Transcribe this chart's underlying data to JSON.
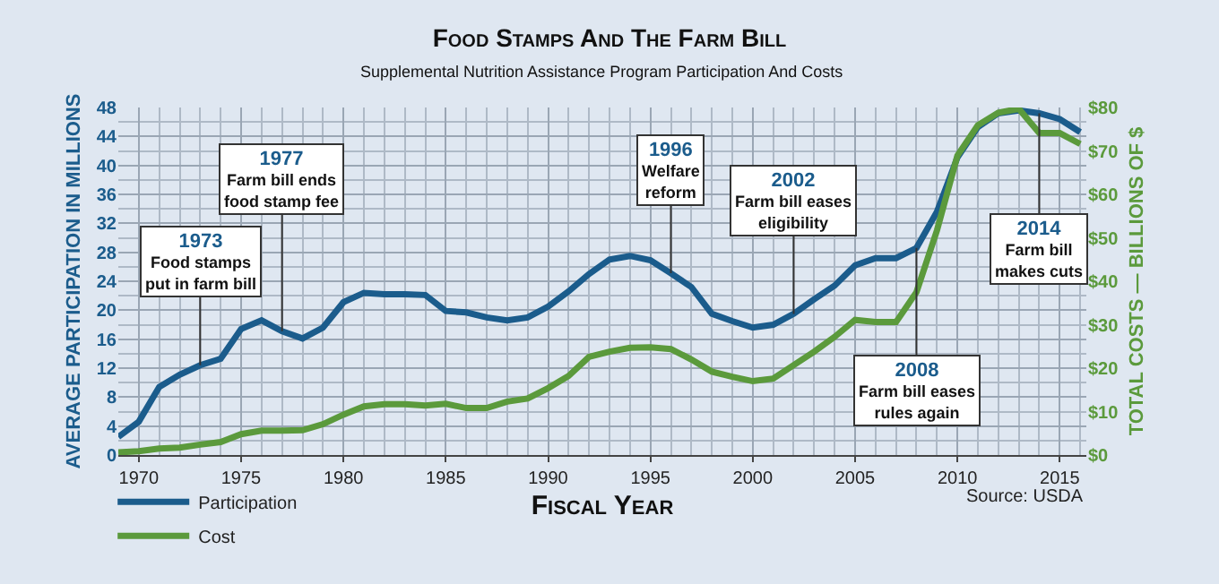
{
  "chart_data": {
    "type": "line",
    "title": "Food Stamps And The Farm Bill",
    "subtitle": "Supplemental Nutrition Assistance Program Participation And Costs",
    "xlabel": "Fiscal Year",
    "ylabel": "AVERAGE PARTICIPATION IN MILLIONS",
    "y2label": "TOTAL COSTS — BILLIONS OF $",
    "x": [
      1969,
      1970,
      1971,
      1972,
      1973,
      1974,
      1975,
      1976,
      1977,
      1978,
      1979,
      1980,
      1981,
      1982,
      1983,
      1984,
      1985,
      1986,
      1987,
      1988,
      1989,
      1990,
      1991,
      1992,
      1993,
      1994,
      1995,
      1996,
      1997,
      1998,
      1999,
      2000,
      2001,
      2002,
      2003,
      2004,
      2005,
      2006,
      2007,
      2008,
      2009,
      2010,
      2011,
      2012,
      2013,
      2014,
      2015,
      2016
    ],
    "series": [
      {
        "name": "Participation",
        "color": "#1b5c8c",
        "values": [
          2.5,
          4.6,
          9.4,
          11.1,
          12.4,
          13.3,
          17.4,
          18.6,
          17.1,
          16.1,
          17.6,
          21.1,
          22.4,
          22.2,
          22.2,
          22.1,
          19.9,
          19.7,
          19.0,
          18.6,
          19.0,
          20.5,
          22.6,
          25.0,
          27.0,
          27.5,
          26.9,
          25.1,
          23.2,
          19.5,
          18.5,
          17.6,
          18.0,
          19.5,
          21.5,
          23.4,
          26.2,
          27.2,
          27.2,
          28.6,
          33.6,
          41.1,
          45.3,
          47.2,
          47.6,
          47.2,
          46.4,
          44.6
        ]
      },
      {
        "name": "Cost",
        "color": "#5b9a3c",
        "axis": "y2",
        "values": [
          0.6,
          0.9,
          1.5,
          1.7,
          2.4,
          3.0,
          4.8,
          5.6,
          5.6,
          5.7,
          7.1,
          9.3,
          11.2,
          11.7,
          11.7,
          11.4,
          11.8,
          10.8,
          10.8,
          12.3,
          13.0,
          15.4,
          18.2,
          22.6,
          23.8,
          24.7,
          24.8,
          24.4,
          22.0,
          19.2,
          18.0,
          17.0,
          17.6,
          20.7,
          23.8,
          27.2,
          31.1,
          30.6,
          30.6,
          37.5,
          51.7,
          68.9,
          75.9,
          78.8,
          79.7,
          74.1,
          74.1,
          71.6
        ]
      }
    ],
    "xlim": [
      1969,
      2016.3
    ],
    "xticks": [
      1970,
      1975,
      1980,
      1985,
      1990,
      1995,
      2000,
      2005,
      2010,
      2015
    ],
    "ylim": [
      0,
      48
    ],
    "yticks": [
      0,
      4,
      8,
      12,
      16,
      20,
      24,
      28,
      32,
      36,
      40,
      44,
      48
    ],
    "y2lim": [
      0,
      80
    ],
    "y2ticks": [
      {
        "value": 0,
        "label": "$0"
      },
      {
        "value": 10,
        "label": "$10"
      },
      {
        "value": 20,
        "label": "$20"
      },
      {
        "value": 30,
        "label": "$30"
      },
      {
        "value": 40,
        "label": "$40"
      },
      {
        "value": 50,
        "label": "$50"
      },
      {
        "value": 60,
        "label": "$60"
      },
      {
        "value": 70,
        "label": "$70"
      },
      {
        "value": 80,
        "label": "$80"
      }
    ],
    "grid": true,
    "legend": "bottom left",
    "marker": "none",
    "line_style": "solid",
    "annotations": [
      {
        "text": "1973\nFood stamps\nput in farm bill",
        "x": 1973,
        "y": 12.4
      },
      {
        "text": "1977\nFarm bill ends\nfood stamp fee",
        "x": 1977,
        "y": 17.1
      },
      {
        "text": "1996\nWelfare\nreform",
        "x": 1996,
        "y": 25.1
      },
      {
        "text": "2002\nFarm bill eases\neligibility",
        "x": 2002,
        "y": 19.5
      },
      {
        "text": "2008\nFarm bill eases\nrules again",
        "x": 2008,
        "y": 28.6
      },
      {
        "text": "2014\nFarm bill\nmakes cuts",
        "x": 2014,
        "y": 47.2
      },
      "Source: USDA"
    ]
  }
}
